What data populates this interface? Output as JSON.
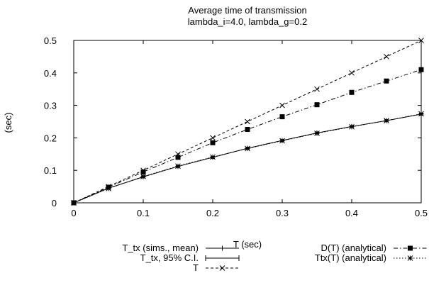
{
  "chart_data": {
    "type": "line",
    "title": "Average time of transmission",
    "subtitle": "lambda_i=4.0, lambda_g=0.2",
    "xlabel": "T (sec)",
    "ylabel": "(sec)",
    "xlim": [
      0,
      0.5
    ],
    "ylim": [
      0,
      0.5
    ],
    "x_ticks": [
      "0",
      "0.1",
      "0.2",
      "0.3",
      "0.4",
      "0.5"
    ],
    "y_ticks": [
      "0",
      "0.1",
      "0.2",
      "0.3",
      "0.4",
      "0.5"
    ],
    "grid": false,
    "legend_position": "bottom",
    "x": [
      0,
      0.05,
      0.1,
      0.15,
      0.2,
      0.25,
      0.3,
      0.35,
      0.4,
      0.45,
      0.5
    ],
    "series": [
      {
        "name": "T_tx (sims., mean)",
        "style": "solid",
        "marker": "plus",
        "values": [
          0,
          0.045,
          0.08,
          0.112,
          0.14,
          0.168,
          0.192,
          0.215,
          0.235,
          0.253,
          0.273
        ]
      },
      {
        "name": "T_tx, 95% C.I.",
        "style": "errorbar",
        "marker": "errorbar",
        "values": [
          0,
          0.045,
          0.08,
          0.112,
          0.14,
          0.168,
          0.192,
          0.215,
          0.235,
          0.253,
          0.273
        ]
      },
      {
        "name": "T",
        "style": "dashed",
        "marker": "x",
        "values": [
          0,
          0.05,
          0.1,
          0.15,
          0.2,
          0.25,
          0.3,
          0.35,
          0.4,
          0.45,
          0.5
        ]
      },
      {
        "name": "D(T) (analytical)",
        "style": "dashdot",
        "marker": "square",
        "values": [
          0,
          0.048,
          0.095,
          0.14,
          0.185,
          0.226,
          0.265,
          0.302,
          0.34,
          0.375,
          0.41
        ]
      },
      {
        "name": "Ttx(T) (analytical)",
        "style": "dotted",
        "marker": "star",
        "values": [
          0,
          0.044,
          0.081,
          0.113,
          0.141,
          0.167,
          0.191,
          0.214,
          0.234,
          0.253,
          0.274
        ]
      }
    ]
  }
}
